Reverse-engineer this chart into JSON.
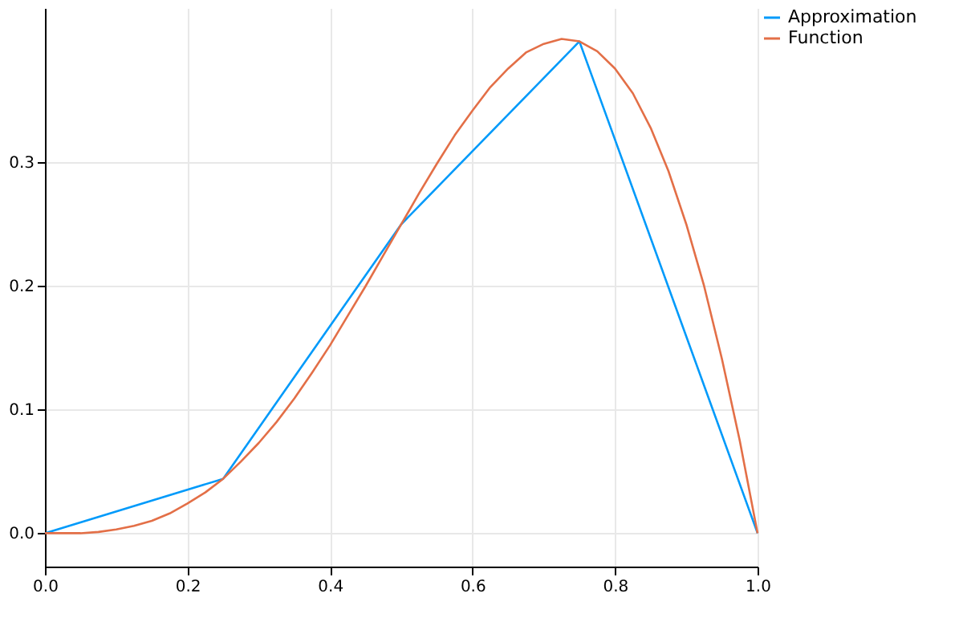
{
  "chart_data": {
    "type": "line",
    "xlim": [
      0,
      1
    ],
    "ylim": [
      -0.027,
      0.425
    ],
    "xticks": [
      {
        "value": 0,
        "label": "0.0"
      },
      {
        "value": 0.2,
        "label": "0.2"
      },
      {
        "value": 0.4,
        "label": "0.4"
      },
      {
        "value": 0.6,
        "label": "0.6"
      },
      {
        "value": 0.8,
        "label": "0.8"
      },
      {
        "value": 1,
        "label": "1.0"
      }
    ],
    "yticks": [
      {
        "value": 0,
        "label": "0.0"
      },
      {
        "value": 0.1,
        "label": "0.1"
      },
      {
        "value": 0.2,
        "label": "0.2"
      },
      {
        "value": 0.3,
        "label": "0.3"
      }
    ],
    "grid": true,
    "legend": "top right",
    "marker": "none",
    "line_style": "solid",
    "series": [
      {
        "name": "Approximation",
        "color": "#009afa",
        "x": [
          0,
          0.25,
          0.5,
          0.75,
          1
        ],
        "values": [
          0,
          0.044,
          0.25,
          0.398,
          0
        ]
      },
      {
        "name": "Function",
        "color": "#e36f47",
        "x": [
          0,
          0.025,
          0.05,
          0.075,
          0.1,
          0.125,
          0.15,
          0.175,
          0.2,
          0.225,
          0.25,
          0.275,
          0.3,
          0.325,
          0.35,
          0.375,
          0.4,
          0.425,
          0.45,
          0.475,
          0.5,
          0.525,
          0.55,
          0.575,
          0.6,
          0.625,
          0.65,
          0.675,
          0.7,
          0.725,
          0.75,
          0.775,
          0.8,
          0.825,
          0.85,
          0.875,
          0.9,
          0.925,
          0.95,
          0.975,
          1
        ],
        "values": [
          0,
          0,
          0,
          0.001,
          0.003,
          0.006,
          0.01,
          0.016,
          0.024,
          0.033,
          0.044,
          0.058,
          0.073,
          0.09,
          0.109,
          0.13,
          0.152,
          0.176,
          0.2,
          0.225,
          0.25,
          0.275,
          0.299,
          0.322,
          0.342,
          0.361,
          0.376,
          0.389,
          0.396,
          0.4,
          0.398,
          0.39,
          0.376,
          0.356,
          0.328,
          0.293,
          0.25,
          0.2,
          0.141,
          0.075,
          0
        ]
      }
    ]
  }
}
